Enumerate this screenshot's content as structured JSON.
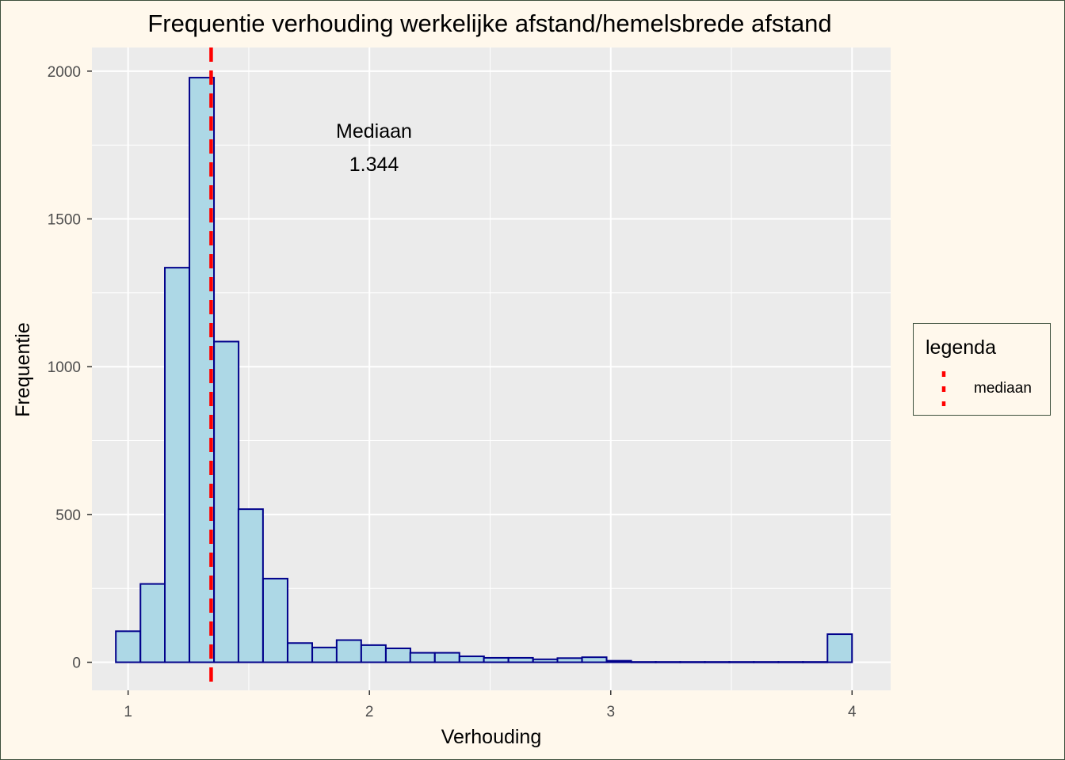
{
  "chart_data": {
    "type": "bar",
    "title": "Frequentie verhouding werkelijke afstand/hemelsbrede afstand",
    "xlabel": "Verhouding",
    "ylabel": "Frequentie",
    "xlim": [
      0.85,
      4.16
    ],
    "ylim": [
      -95,
      2080
    ],
    "x_ticks": [
      1,
      2,
      3,
      4
    ],
    "y_ticks": [
      0,
      500,
      1000,
      1500,
      2000
    ],
    "x_tick_labels": [
      "1",
      "2",
      "3",
      "4"
    ],
    "y_tick_labels": [
      "0",
      "500",
      "1000",
      "1500",
      "2000"
    ],
    "grid": true,
    "bin_width": 0.1017,
    "bin_centers": [
      1.0,
      1.102,
      1.203,
      1.305,
      1.407,
      1.508,
      1.61,
      1.712,
      1.814,
      1.915,
      2.017,
      2.119,
      2.22,
      2.322,
      2.424,
      2.525,
      2.627,
      2.729,
      2.83,
      2.932,
      3.034,
      3.136,
      3.237,
      3.339,
      3.441,
      3.542,
      3.644,
      3.746,
      3.847,
      3.949
    ],
    "values": [
      105,
      265,
      1335,
      1978,
      1085,
      518,
      283,
      65,
      50,
      75,
      58,
      47,
      32,
      32,
      20,
      15,
      15,
      10,
      14,
      17,
      5,
      1,
      1,
      1,
      1,
      1,
      1,
      1,
      1,
      95
    ],
    "colors": {
      "bar_fill": "#add8e6",
      "bar_stroke": "#00008b",
      "median_line": "#ff0000",
      "panel": "#ebebeb",
      "grid": "#ffffff",
      "background": "#fff8ec"
    },
    "median": 1.344,
    "annotation": {
      "label": "Mediaan",
      "value": "1.344"
    },
    "legend": {
      "title": "legenda",
      "placement": "right",
      "items": [
        {
          "label": "mediaan",
          "color": "#ff0000",
          "linetype": "dashed"
        }
      ]
    }
  }
}
